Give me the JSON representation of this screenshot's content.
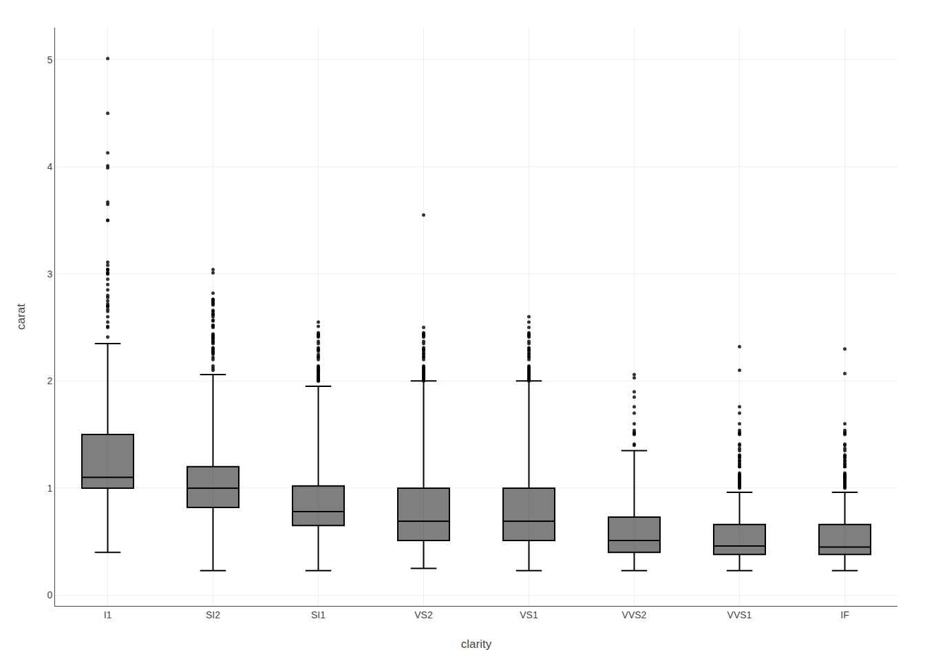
{
  "chart_data": {
    "type": "box",
    "xlabel": "clarity",
    "ylabel": "carat",
    "categories": [
      "I1",
      "SI2",
      "SI1",
      "VS2",
      "VS1",
      "VVS2",
      "VVS1",
      "IF"
    ],
    "q1": [
      1.0,
      0.82,
      0.65,
      0.51,
      0.51,
      0.4,
      0.38,
      0.38
    ],
    "median": [
      1.1,
      1.0,
      0.78,
      0.69,
      0.69,
      0.51,
      0.46,
      0.45
    ],
    "q3": [
      1.5,
      1.2,
      1.02,
      1.0,
      1.0,
      0.73,
      0.66,
      0.66
    ],
    "whislo": [
      0.4,
      0.23,
      0.23,
      0.25,
      0.23,
      0.23,
      0.23,
      0.23
    ],
    "whishi": [
      2.35,
      2.06,
      1.95,
      2.0,
      2.0,
      1.35,
      0.96,
      0.96
    ],
    "fliers": [
      [
        2.41,
        2.5,
        2.51,
        2.55,
        2.6,
        2.65,
        2.67,
        2.7,
        2.7,
        2.7,
        2.72,
        2.75,
        2.78,
        2.8,
        2.85,
        2.9,
        2.95,
        3.0,
        3.0,
        3.01,
        3.01,
        3.04,
        3.04,
        3.04,
        3.08,
        3.11,
        3.5,
        3.5,
        3.65,
        3.67,
        3.99,
        4.01,
        4.13,
        4.5,
        5.01
      ],
      [
        2.1,
        2.12,
        2.14,
        2.2,
        2.22,
        2.25,
        2.26,
        2.27,
        2.27,
        2.28,
        2.28,
        2.3,
        2.3,
        2.3,
        2.31,
        2.35,
        2.36,
        2.37,
        2.38,
        2.4,
        2.4,
        2.4,
        2.41,
        2.42,
        2.43,
        2.44,
        2.5,
        2.51,
        2.52,
        2.52,
        2.56,
        2.57,
        2.6,
        2.62,
        2.62,
        2.63,
        2.65,
        2.66,
        2.71,
        2.72,
        2.73,
        2.74,
        2.75,
        2.76,
        2.76,
        2.76,
        2.82,
        3.01,
        3.04
      ],
      [
        2.0,
        2.0,
        2.01,
        2.01,
        2.02,
        2.02,
        2.03,
        2.04,
        2.05,
        2.06,
        2.07,
        2.08,
        2.09,
        2.1,
        2.1,
        2.1,
        2.11,
        2.12,
        2.13,
        2.14,
        2.2,
        2.22,
        2.23,
        2.25,
        2.28,
        2.29,
        2.3,
        2.31,
        2.35,
        2.37,
        2.41,
        2.42,
        2.43,
        2.44,
        2.45,
        2.51,
        2.55
      ],
      [
        2.0,
        2.01,
        2.02,
        2.03,
        2.04,
        2.05,
        2.06,
        2.07,
        2.08,
        2.09,
        2.1,
        2.11,
        2.12,
        2.13,
        2.14,
        2.2,
        2.22,
        2.23,
        2.25,
        2.26,
        2.28,
        2.29,
        2.3,
        2.31,
        2.35,
        2.37,
        2.41,
        2.42,
        2.43,
        2.44,
        2.45,
        2.5,
        3.55
      ],
      [
        2.0,
        2.01,
        2.02,
        2.03,
        2.04,
        2.05,
        2.06,
        2.07,
        2.08,
        2.09,
        2.1,
        2.11,
        2.12,
        2.13,
        2.14,
        2.2,
        2.22,
        2.23,
        2.25,
        2.26,
        2.28,
        2.29,
        2.3,
        2.31,
        2.35,
        2.37,
        2.41,
        2.42,
        2.43,
        2.44,
        2.45,
        2.5,
        2.55,
        2.6
      ],
      [
        1.4,
        1.41,
        1.5,
        1.51,
        1.52,
        1.54,
        1.6,
        1.7,
        1.76,
        1.85,
        1.9,
        2.03,
        2.06
      ],
      [
        1.0,
        1.01,
        1.02,
        1.03,
        1.04,
        1.05,
        1.06,
        1.07,
        1.08,
        1.09,
        1.1,
        1.1,
        1.1,
        1.11,
        1.12,
        1.12,
        1.13,
        1.14,
        1.2,
        1.2,
        1.22,
        1.23,
        1.25,
        1.26,
        1.28,
        1.29,
        1.3,
        1.31,
        1.35,
        1.37,
        1.4,
        1.41,
        1.5,
        1.51,
        1.52,
        1.54,
        1.6,
        1.7,
        1.76,
        2.1,
        2.32
      ],
      [
        1.0,
        1.01,
        1.02,
        1.03,
        1.04,
        1.05,
        1.06,
        1.07,
        1.08,
        1.09,
        1.1,
        1.1,
        1.1,
        1.11,
        1.12,
        1.12,
        1.13,
        1.14,
        1.2,
        1.2,
        1.22,
        1.23,
        1.25,
        1.26,
        1.28,
        1.29,
        1.3,
        1.31,
        1.35,
        1.37,
        1.4,
        1.41,
        1.5,
        1.51,
        1.52,
        1.54,
        1.6,
        2.07,
        2.3
      ]
    ],
    "color": "#000000",
    "ylim": [
      -0.1,
      5.3
    ],
    "yticks": [
      0,
      1,
      2,
      3,
      4,
      5
    ],
    "grid": true
  }
}
